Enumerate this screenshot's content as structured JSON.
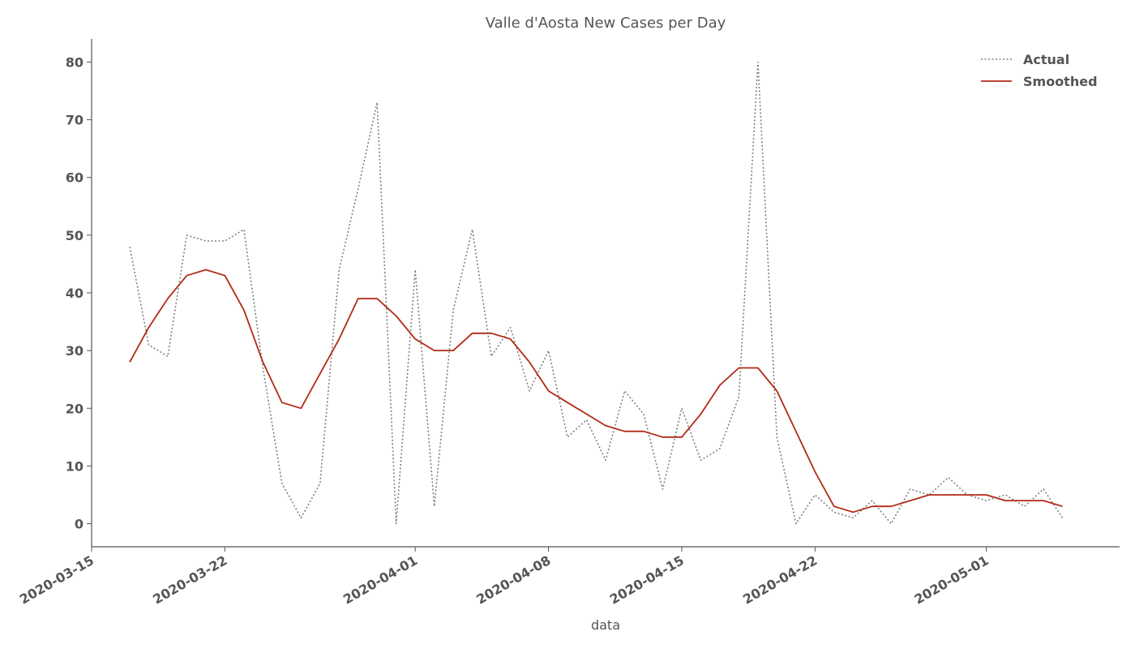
{
  "chart_data": {
    "type": "line",
    "title": "Valle d'Aosta New Cases per Day",
    "xlabel": "data",
    "ylabel": "",
    "x_start": "2020-03-17",
    "x": [
      "2020-03-17",
      "2020-03-18",
      "2020-03-19",
      "2020-03-20",
      "2020-03-21",
      "2020-03-22",
      "2020-03-23",
      "2020-03-24",
      "2020-03-25",
      "2020-03-26",
      "2020-03-27",
      "2020-03-28",
      "2020-03-29",
      "2020-03-30",
      "2020-03-31",
      "2020-04-01",
      "2020-04-02",
      "2020-04-03",
      "2020-04-04",
      "2020-04-05",
      "2020-04-06",
      "2020-04-07",
      "2020-04-08",
      "2020-04-09",
      "2020-04-10",
      "2020-04-11",
      "2020-04-12",
      "2020-04-13",
      "2020-04-14",
      "2020-04-15",
      "2020-04-16",
      "2020-04-17",
      "2020-04-18",
      "2020-04-19",
      "2020-04-20",
      "2020-04-21",
      "2020-04-22",
      "2020-04-23",
      "2020-04-24",
      "2020-04-25",
      "2020-04-26",
      "2020-04-27",
      "2020-04-28",
      "2020-04-29",
      "2020-04-30",
      "2020-05-01",
      "2020-05-02",
      "2020-05-03",
      "2020-05-04",
      "2020-05-05",
      "2020-05-06"
    ],
    "series": [
      {
        "name": "Actual",
        "color": "#808080",
        "style": "dotted",
        "values": [
          48,
          31,
          29,
          50,
          49,
          49,
          51,
          27,
          7,
          1,
          7,
          44,
          58,
          73,
          0,
          44,
          3,
          37,
          51,
          29,
          34,
          23,
          30,
          15,
          18,
          11,
          23,
          19,
          6,
          20,
          11,
          13,
          22,
          80,
          15,
          0,
          5,
          2,
          1,
          4,
          0,
          6,
          5,
          8,
          5,
          4,
          5,
          3,
          6,
          1,
          null
        ]
      },
      {
        "name": "Smoothed",
        "color": "#b22a16",
        "style": "solid",
        "values": [
          28,
          34,
          39,
          43,
          44,
          43,
          37,
          28,
          21,
          20,
          26,
          32,
          39,
          39,
          36,
          32,
          30,
          30,
          33,
          33,
          32,
          28,
          23,
          21,
          19,
          17,
          16,
          16,
          15,
          15,
          19,
          24,
          27,
          27,
          23,
          16,
          9,
          3,
          2,
          3,
          3,
          4,
          5,
          5,
          5,
          5,
          4,
          4,
          4,
          3,
          null
        ]
      }
    ],
    "xticks": [
      "2020-03-15",
      "2020-03-22",
      "2020-04-01",
      "2020-04-08",
      "2020-04-15",
      "2020-04-22",
      "2020-05-01"
    ],
    "yticks": [
      0,
      10,
      20,
      30,
      40,
      50,
      60,
      70,
      80
    ],
    "xlim": [
      "2020-03-15",
      "2020-05-08"
    ],
    "ylim": [
      -4,
      84
    ],
    "grid": false,
    "legend": "top-right"
  }
}
